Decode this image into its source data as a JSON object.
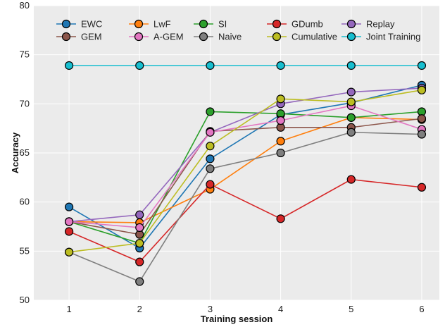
{
  "chart_data": {
    "type": "line",
    "title": "",
    "xlabel": "Training session",
    "ylabel": "Accuracy",
    "x": [
      1,
      2,
      3,
      4,
      5,
      6
    ],
    "xlim": [
      0.5,
      6.25
    ],
    "ylim": [
      50,
      80
    ],
    "yticks": [
      50,
      55,
      60,
      65,
      70,
      75,
      80
    ],
    "grid": true,
    "legend_position": "top",
    "legend_columns": 5,
    "series": [
      {
        "name": "EWC",
        "color": "#1f77b4",
        "values": [
          59.5,
          55.3,
          64.4,
          68.9,
          70.1,
          71.9
        ]
      },
      {
        "name": "LwF",
        "color": "#ff7f0e",
        "values": [
          58.0,
          57.9,
          61.3,
          66.2,
          68.6,
          68.4
        ]
      },
      {
        "name": "SI",
        "color": "#2ca02c",
        "values": [
          58.0,
          55.8,
          69.2,
          69.0,
          68.6,
          69.2
        ]
      },
      {
        "name": "GDumb",
        "color": "#d62728",
        "values": [
          57.0,
          53.9,
          61.8,
          58.3,
          62.3,
          61.5
        ]
      },
      {
        "name": "Replay",
        "color": "#9467bd",
        "values": [
          58.0,
          58.7,
          67.1,
          70.0,
          71.2,
          71.6
        ]
      },
      {
        "name": "GEM",
        "color": "#8c564b",
        "values": [
          58.0,
          56.7,
          67.2,
          67.6,
          67.6,
          68.5
        ]
      },
      {
        "name": "A-GEM",
        "color": "#e377c2",
        "values": [
          58.0,
          57.4,
          67.1,
          68.3,
          69.8,
          67.4
        ]
      },
      {
        "name": "Naive",
        "color": "#7f7f7f",
        "values": [
          54.9,
          51.9,
          63.4,
          65.0,
          67.1,
          66.9
        ]
      },
      {
        "name": "Cumulative",
        "color": "#bcbd22",
        "values": [
          54.9,
          55.8,
          65.7,
          70.5,
          70.2,
          71.4
        ]
      },
      {
        "name": "Joint Training",
        "color": "#17becf",
        "values": [
          73.9,
          73.9,
          73.9,
          73.9,
          73.9,
          73.9
        ]
      }
    ]
  }
}
